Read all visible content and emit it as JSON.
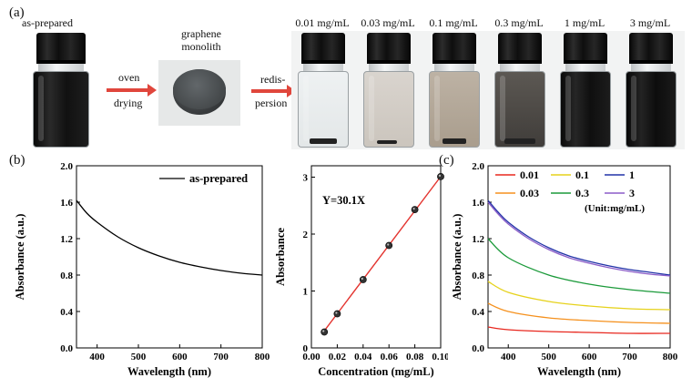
{
  "panel_labels": {
    "a": "(a)",
    "b": "(b)",
    "c": "(c)"
  },
  "top_row": {
    "as_prepared": "as-prepared",
    "oven": "oven",
    "drying": "drying",
    "monolith_line1": "graphene",
    "monolith_line2": "monolith",
    "redis_line1": "redis-",
    "redis_line2": "persion",
    "vial_labels": [
      "0.01 mg/mL",
      "0.03 mg/mL",
      "0.1 mg/mL",
      "0.3 mg/mL",
      "1 mg/mL",
      "3 mg/mL"
    ],
    "colors": {
      "arrow": "#e0463c"
    }
  },
  "chart_data": [
    {
      "type": "line",
      "xlabel": "Wavelength (nm)",
      "ylabel": "Absorbance (a.u.)",
      "xlim": [
        350,
        800
      ],
      "ylim": [
        0,
        2.0
      ],
      "xticks": [
        "400",
        "500",
        "600",
        "700",
        "800"
      ],
      "yticks": [
        "0.0",
        "0.4",
        "0.8",
        "1.2",
        "1.6",
        "2.0"
      ],
      "legend_position": "top-right",
      "series": [
        {
          "name": "as-prepared",
          "color": "#000000",
          "x": [
            350,
            375,
            400,
            450,
            500,
            550,
            600,
            650,
            700,
            750,
            800
          ],
          "y": [
            1.62,
            1.48,
            1.38,
            1.22,
            1.1,
            1.01,
            0.94,
            0.89,
            0.85,
            0.82,
            0.8
          ]
        }
      ]
    },
    {
      "type": "scatter",
      "xlabel": "Concentration (mg/mL)",
      "ylabel": "Absorbance",
      "xlim": [
        0,
        0.1
      ],
      "ylim": [
        0,
        3.2
      ],
      "xticks": [
        "0.00",
        "0.02",
        "0.04",
        "0.06",
        "0.08",
        "0.10"
      ],
      "yticks": [
        "0",
        "1",
        "2",
        "3"
      ],
      "annotation": "Y=30.1X",
      "fit_color": "#e3342f",
      "x": [
        0.01,
        0.02,
        0.04,
        0.06,
        0.08,
        0.1
      ],
      "y": [
        0.28,
        0.6,
        1.2,
        1.8,
        2.43,
        3.01
      ],
      "fit": {
        "slope": 30.1,
        "x_range": [
          0.01,
          0.1
        ]
      }
    },
    {
      "type": "line",
      "xlabel": "Wavelength (nm)",
      "ylabel": "Absorbance (a.u.)",
      "xlim": [
        350,
        800
      ],
      "ylim": [
        0,
        2.0
      ],
      "xticks": [
        "400",
        "500",
        "600",
        "700",
        "800"
      ],
      "yticks": [
        "0.0",
        "0.4",
        "0.8",
        "1.2",
        "1.6",
        "2.0"
      ],
      "legend_note": "(Unit:mg/mL)",
      "legend_position": "top-right",
      "series": [
        {
          "name": "0.01",
          "color": "#e8281f",
          "x": [
            350,
            400,
            500,
            600,
            700,
            800
          ],
          "y": [
            0.23,
            0.2,
            0.18,
            0.17,
            0.16,
            0.16
          ]
        },
        {
          "name": "0.03",
          "color": "#f5911e",
          "x": [
            350,
            400,
            500,
            600,
            700,
            800
          ],
          "y": [
            0.49,
            0.4,
            0.33,
            0.3,
            0.28,
            0.27
          ]
        },
        {
          "name": "0.1",
          "color": "#e6d21c",
          "x": [
            350,
            400,
            500,
            600,
            700,
            800
          ],
          "y": [
            0.73,
            0.61,
            0.51,
            0.46,
            0.43,
            0.42
          ]
        },
        {
          "name": "0.3",
          "color": "#1b9a3a",
          "x": [
            350,
            400,
            500,
            600,
            700,
            800
          ],
          "y": [
            1.2,
            0.99,
            0.8,
            0.7,
            0.64,
            0.6
          ]
        },
        {
          "name": "1",
          "color": "#2233a8",
          "x": [
            350,
            375,
            400,
            450,
            500,
            550,
            600,
            650,
            700,
            750,
            800
          ],
          "y": [
            1.62,
            1.49,
            1.38,
            1.22,
            1.1,
            1.01,
            0.95,
            0.9,
            0.86,
            0.83,
            0.8
          ]
        },
        {
          "name": "3",
          "color": "#8b5cc8",
          "x": [
            350,
            375,
            400,
            450,
            500,
            550,
            600,
            650,
            700,
            750,
            800
          ],
          "y": [
            1.6,
            1.47,
            1.36,
            1.2,
            1.08,
            0.99,
            0.93,
            0.88,
            0.84,
            0.81,
            0.79
          ]
        }
      ]
    }
  ]
}
